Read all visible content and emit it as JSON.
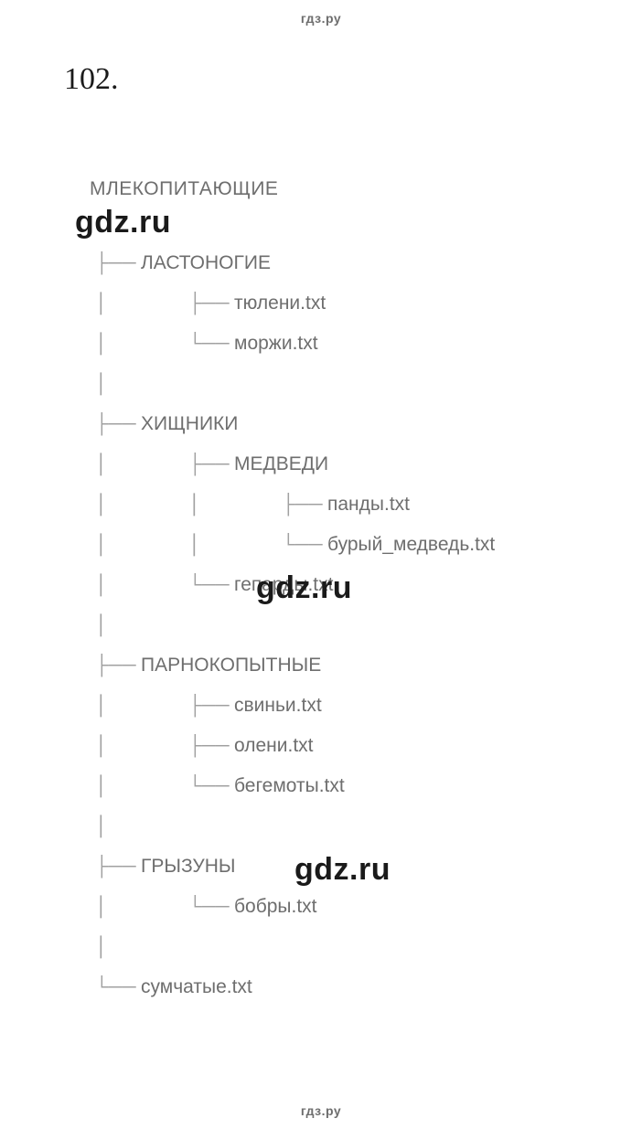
{
  "watermark": {
    "header": "гдз.ру",
    "footer": "гдз.ру",
    "overlay": "gdz.ru"
  },
  "problem": {
    "number": "102."
  },
  "tree": {
    "root": "МЛЕКОПИТАЮЩИЕ",
    "text_color": "#6e6e6e",
    "connector_color": "#a0a0a0",
    "font_size": 21,
    "line_height": 44,
    "rows": [
      {
        "prefix": "├── ",
        "indent": "",
        "text": "ЛАСТОНОГИЕ"
      },
      {
        "prefix": "├── ",
        "indent": "│   ",
        "text": "тюлени.txt"
      },
      {
        "prefix": "└── ",
        "indent": "│   ",
        "text": "моржи.txt"
      },
      {
        "prefix": "",
        "indent": "│",
        "text": ""
      },
      {
        "prefix": "├── ",
        "indent": "",
        "text": "ХИЩНИКИ"
      },
      {
        "prefix": "├── ",
        "indent": "│   ",
        "text": "МЕДВЕДИ"
      },
      {
        "prefix": "├── ",
        "indent": "│   │   ",
        "text": "панды.txt"
      },
      {
        "prefix": "└── ",
        "indent": "│   │   ",
        "text": "бурый_медведь.txt"
      },
      {
        "prefix": "└── ",
        "indent": "│   ",
        "text": "гепарды.txt"
      },
      {
        "prefix": "",
        "indent": "│",
        "text": ""
      },
      {
        "prefix": "├── ",
        "indent": "",
        "text": "ПАРНОКОПЫТНЫЕ"
      },
      {
        "prefix": "├── ",
        "indent": "│   ",
        "text": "свиньи.txt"
      },
      {
        "prefix": "├── ",
        "indent": "│   ",
        "text": "олени.txt"
      },
      {
        "prefix": "└── ",
        "indent": "│   ",
        "text": "бегемоты.txt"
      },
      {
        "prefix": "",
        "indent": "│",
        "text": ""
      },
      {
        "prefix": "├── ",
        "indent": "",
        "text": "ГРЫЗУНЫ"
      },
      {
        "prefix": "└── ",
        "indent": "│   ",
        "text": "бобры.txt"
      },
      {
        "prefix": "",
        "indent": "│",
        "text": ""
      },
      {
        "prefix": "└── ",
        "indent": "",
        "text": "сумчатые.txt"
      }
    ]
  },
  "styling": {
    "background_color": "#ffffff",
    "number_color": "#1a1a1a",
    "number_font_family": "Times New Roman",
    "number_font_size": 34,
    "watermark_large_font_size": 34,
    "watermark_large_color": "#1a1a1a",
    "watermark_small_color": "#6e6e6e",
    "watermark_small_font_size": 14
  }
}
